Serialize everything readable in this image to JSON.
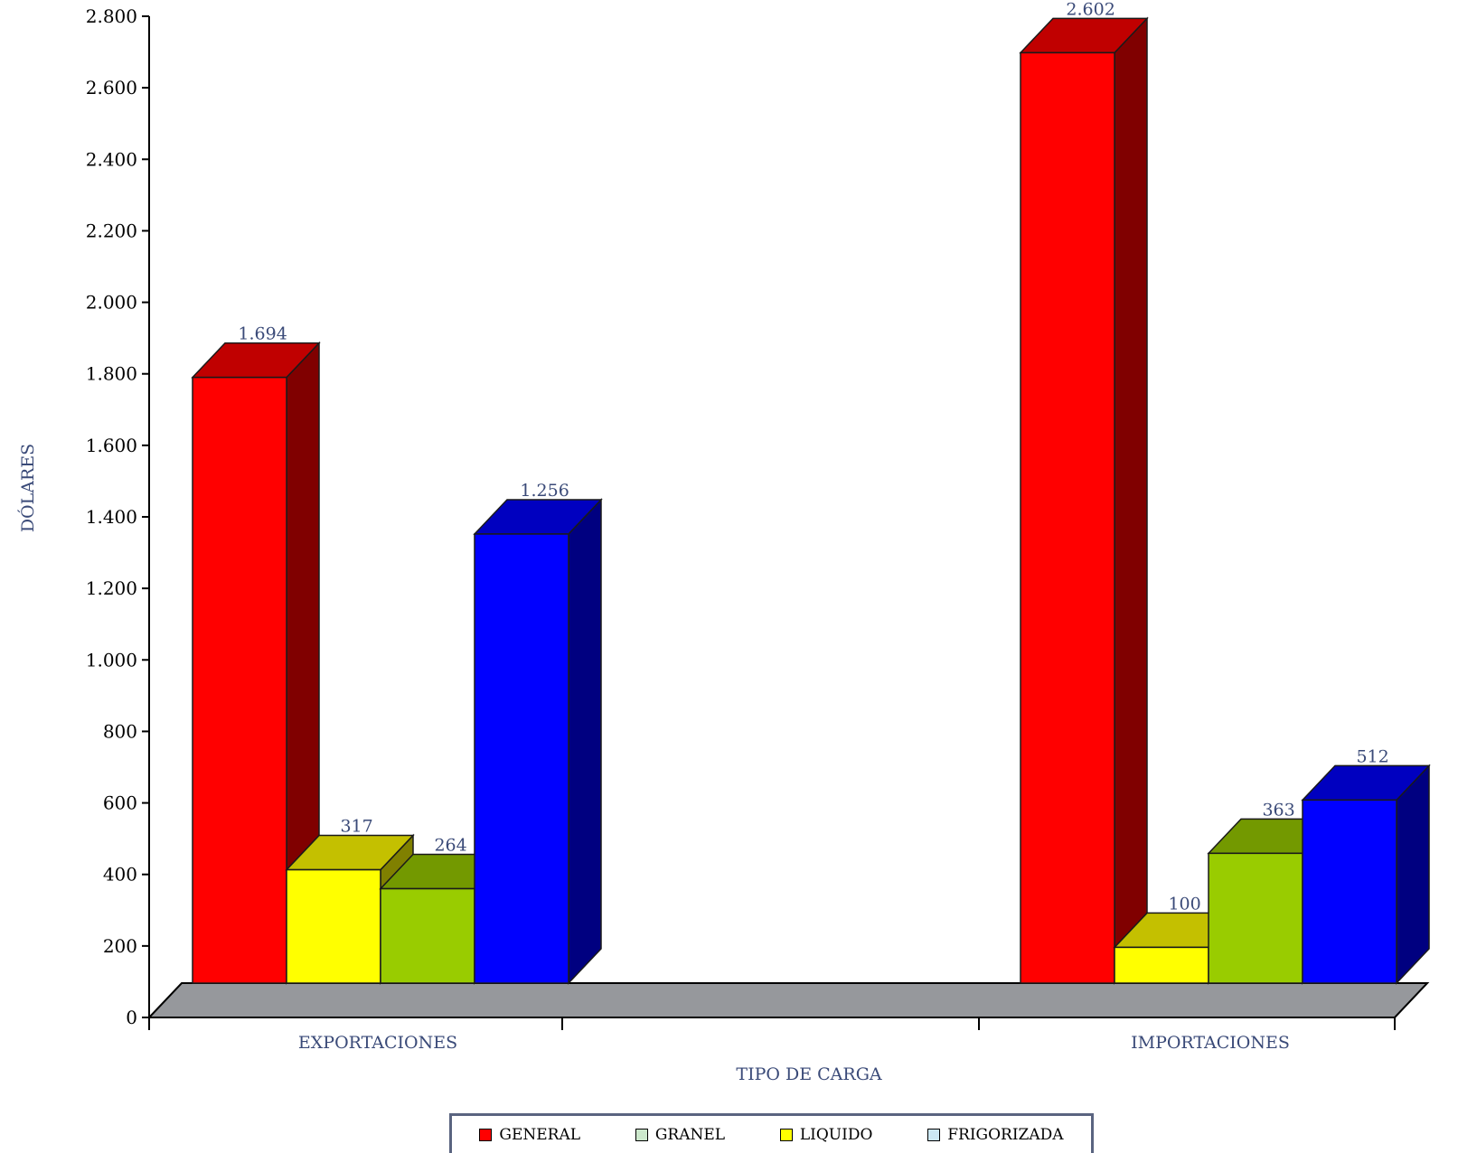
{
  "chart_data": {
    "type": "bar",
    "style": "3d-clustered-column",
    "categories": [
      "EXPORTACIONES",
      "IMPORTACIONES"
    ],
    "xlabel": "TIPO DE CARGA",
    "ylabel": "DÓLARES",
    "ylim": [
      0,
      2800
    ],
    "yticks": [
      0,
      200,
      400,
      600,
      800,
      1000,
      1200,
      1400,
      1600,
      1800,
      2000,
      2200,
      2400,
      2600,
      2800
    ],
    "ytick_labels": [
      "0",
      "200",
      "400",
      "600",
      "800",
      "1.000",
      "1.200",
      "1.400",
      "1.600",
      "1.800",
      "2.000",
      "2.200",
      "2.400",
      "2.600",
      "2.800"
    ],
    "bars": [
      {
        "category": "EXPORTACIONES",
        "value": 1694,
        "label": "1.694",
        "color": "#ff0000",
        "top": "#c00000",
        "side": "#800000"
      },
      {
        "category": "EXPORTACIONES",
        "value": 317,
        "label": "317",
        "color": "#ffff00",
        "top": "#c4c000",
        "side": "#808000"
      },
      {
        "category": "EXPORTACIONES",
        "value": 264,
        "label": "264",
        "color": "#99cc00",
        "top": "#739900",
        "side": "#4d6600"
      },
      {
        "category": "EXPORTACIONES",
        "value": 1256,
        "label": "1.256",
        "color": "#0000ff",
        "top": "#0000c0",
        "side": "#000080"
      },
      {
        "category": "IMPORTACIONES",
        "value": 2602,
        "label": "2.602",
        "color": "#ff0000",
        "top": "#c00000",
        "side": "#800000"
      },
      {
        "category": "IMPORTACIONES",
        "value": 100,
        "label": "100",
        "color": "#ffff00",
        "top": "#c4c000",
        "side": "#808000"
      },
      {
        "category": "IMPORTACIONES",
        "value": 363,
        "label": "363",
        "color": "#99cc00",
        "top": "#739900",
        "side": "#4d6600"
      },
      {
        "category": "IMPORTACIONES",
        "value": 512,
        "label": "512",
        "color": "#0000ff",
        "top": "#0000c0",
        "side": "#000080"
      }
    ],
    "legend": [
      {
        "name": "GENERAL",
        "color": "#ff0000"
      },
      {
        "name": "GRANEL",
        "color": "#cce8cc"
      },
      {
        "name": "LIQUIDO",
        "color": "#ffff00"
      },
      {
        "name": "FRIGORIZADA",
        "color": "#cce8f4"
      }
    ],
    "legend_position": "bottom",
    "floor_color": "#96989c",
    "grid": false
  }
}
